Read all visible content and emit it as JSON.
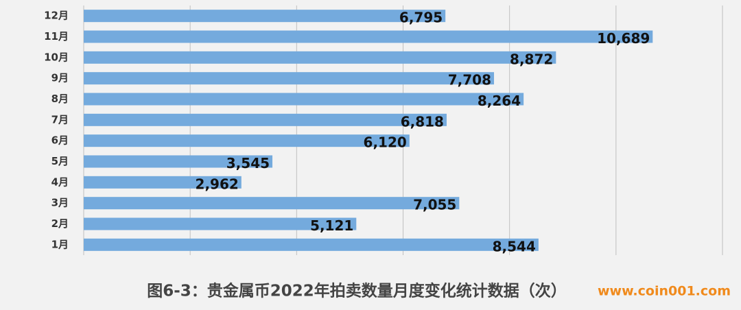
{
  "chart_data": {
    "type": "bar",
    "orientation": "horizontal",
    "caption": "图6-3：贵金属币2022年拍卖数量月度变化统计数据（次）",
    "watermark": "www.coin001.com",
    "categories": [
      "1月",
      "2月",
      "3月",
      "4月",
      "5月",
      "6月",
      "7月",
      "8月",
      "9月",
      "10月",
      "11月",
      "12月"
    ],
    "values": [
      8544,
      5121,
      7055,
      2962,
      3545,
      6120,
      6818,
      8264,
      7708,
      8872,
      10689,
      6795
    ],
    "value_labels": [
      "8,544",
      "5,121",
      "7,055",
      "2,962",
      "3,545",
      "6,120",
      "6,818",
      "8,264",
      "7,708",
      "8,872",
      "10,689",
      "6,795"
    ],
    "color": "#74aadd",
    "xlim": [
      0,
      12000
    ],
    "xticks": [
      0,
      2000,
      4000,
      6000,
      8000,
      10000,
      12000
    ],
    "show_tick_labels": false,
    "grid": true
  }
}
